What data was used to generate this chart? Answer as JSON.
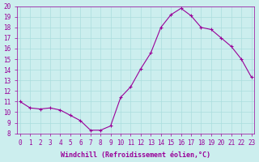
{
  "x": [
    0,
    1,
    2,
    3,
    4,
    5,
    6,
    7,
    8,
    9,
    10,
    11,
    12,
    13,
    14,
    15,
    16,
    17,
    18,
    19,
    20,
    21,
    22,
    23
  ],
  "y": [
    11.0,
    10.4,
    10.3,
    10.4,
    10.2,
    9.7,
    9.2,
    8.3,
    8.3,
    8.7,
    11.4,
    12.4,
    14.1,
    15.6,
    18.0,
    19.2,
    19.8,
    19.1,
    18.0,
    17.8,
    17.0,
    16.2,
    15.0,
    13.3
  ],
  "xlim": [
    0,
    23
  ],
  "ylim": [
    8,
    20
  ],
  "yticks": [
    8,
    9,
    10,
    11,
    12,
    13,
    14,
    15,
    16,
    17,
    18,
    19,
    20
  ],
  "xticks": [
    0,
    1,
    2,
    3,
    4,
    5,
    6,
    7,
    8,
    9,
    10,
    11,
    12,
    13,
    14,
    15,
    16,
    17,
    18,
    19,
    20,
    21,
    22,
    23
  ],
  "xlabel": "Windchill (Refroidissement éolien,°C)",
  "line_color": "#990099",
  "marker": "+",
  "bg_color": "#cceeee",
  "grid_color": "#aadddd",
  "font_color": "#990099",
  "font_family": "monospace"
}
